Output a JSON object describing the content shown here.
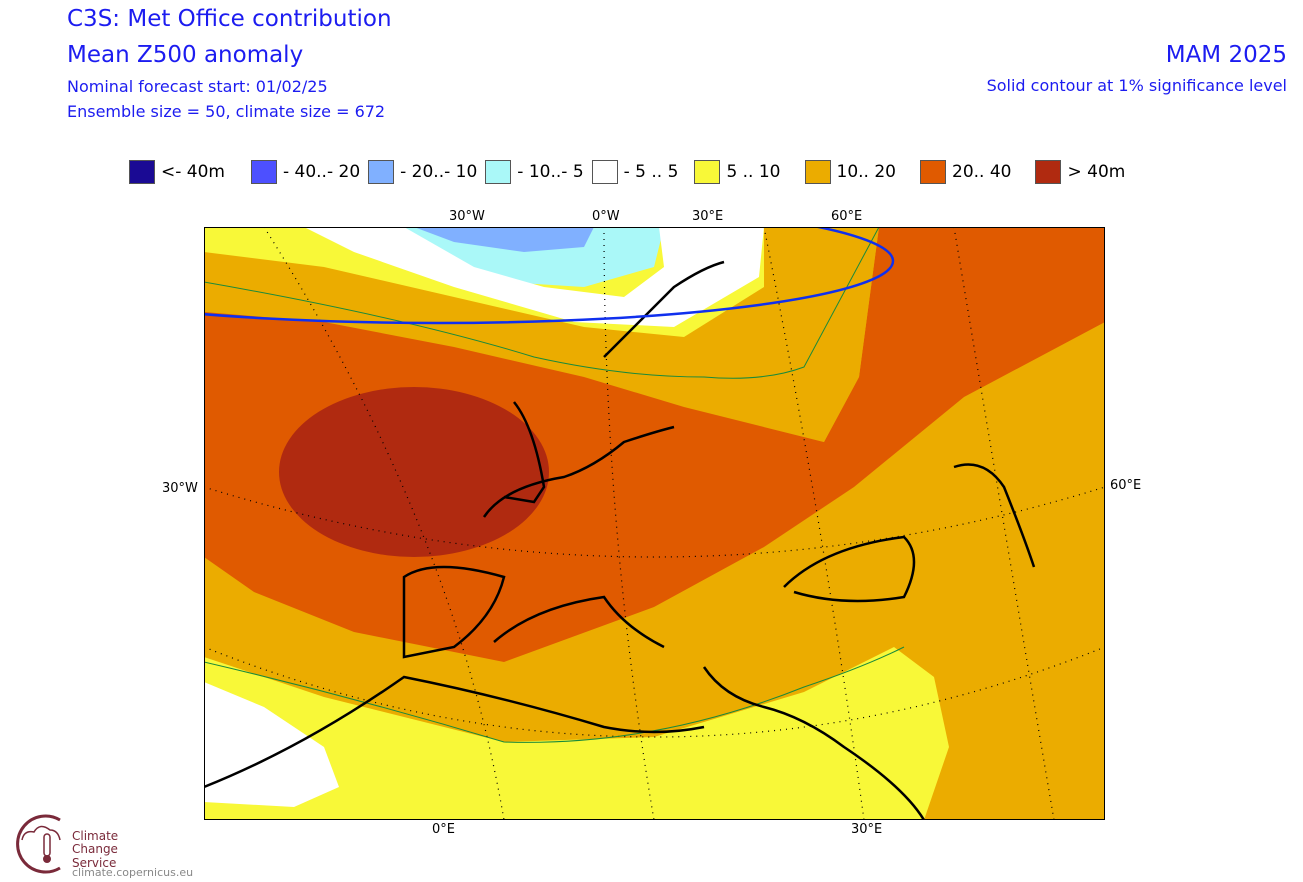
{
  "header": {
    "title": "C3S: Met Office contribution",
    "subtitle": "Mean Z500 anomaly",
    "forecast_start": "Nominal forecast start: 01/02/25",
    "ensemble": "Ensemble size = 50, climate size = 672",
    "season": "MAM 2025",
    "significance": "Solid contour at 1% significance level"
  },
  "legend": [
    {
      "label": "<- 40m",
      "color": "#1a0a94"
    },
    {
      "label": "- 40..- 20",
      "color": "#4d50ff"
    },
    {
      "label": "- 20..- 10",
      "color": "#80b0ff"
    },
    {
      "label": "- 10..- 5",
      "color": "#aaf8f8"
    },
    {
      "label": "- 5 .. 5",
      "color": "#ffffff"
    },
    {
      "label": "5 .. 10",
      "color": "#f8f838"
    },
    {
      "label": "10.. 20",
      "color": "#ebac00"
    },
    {
      "label": "20.. 40",
      "color": "#e05a00"
    },
    {
      "label": ">  40m",
      "color": "#b02a10"
    }
  ],
  "axes": {
    "top": [
      "30°W",
      "0°W",
      "30°E",
      "60°E"
    ],
    "left": "30°W",
    "right": "60°E",
    "bottom": [
      "0°E",
      "30°E"
    ]
  },
  "logo": {
    "line1": "Climate",
    "line2": "Change Service",
    "url": "climate.copernicus.eu"
  }
}
